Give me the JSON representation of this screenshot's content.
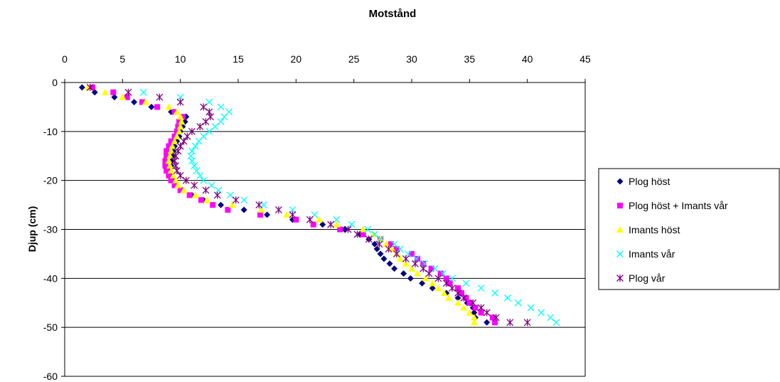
{
  "chart_data": {
    "type": "scatter",
    "title": "Motstånd",
    "xlabel": "",
    "ylabel": "Djup (cm)",
    "xlim": [
      0,
      45
    ],
    "ylim": [
      -60,
      0
    ],
    "xticks": [
      0,
      5,
      10,
      15,
      20,
      25,
      30,
      35,
      40,
      45
    ],
    "yticks": [
      0,
      -10,
      -20,
      -30,
      -40,
      -50,
      -60
    ],
    "x_axis_position": "top",
    "grid": "horizontal",
    "legend_position": "right",
    "series": [
      {
        "name": "Plog höst",
        "marker": "diamond",
        "color": "#000080",
        "points": [
          [
            1.5,
            -1
          ],
          [
            2.6,
            -2
          ],
          [
            4.3,
            -3
          ],
          [
            6.0,
            -4
          ],
          [
            7.5,
            -5
          ],
          [
            9.2,
            -6
          ],
          [
            10.5,
            -7
          ],
          [
            10.4,
            -8
          ],
          [
            10.2,
            -9
          ],
          [
            10.0,
            -10
          ],
          [
            9.9,
            -11
          ],
          [
            9.7,
            -12
          ],
          [
            9.5,
            -13
          ],
          [
            9.4,
            -14
          ],
          [
            9.3,
            -15
          ],
          [
            9.2,
            -16
          ],
          [
            9.2,
            -17
          ],
          [
            9.1,
            -18
          ],
          [
            9.2,
            -19
          ],
          [
            9.4,
            -20
          ],
          [
            9.6,
            -21
          ],
          [
            10.2,
            -22
          ],
          [
            11.0,
            -23
          ],
          [
            12.0,
            -24
          ],
          [
            13.5,
            -25
          ],
          [
            15.5,
            -26
          ],
          [
            17.5,
            -27
          ],
          [
            19.7,
            -28
          ],
          [
            22.3,
            -29
          ],
          [
            24.2,
            -30
          ],
          [
            25.5,
            -31
          ],
          [
            26.3,
            -32
          ],
          [
            26.8,
            -33
          ],
          [
            27.0,
            -34
          ],
          [
            27.3,
            -35
          ],
          [
            27.6,
            -36
          ],
          [
            28.1,
            -37
          ],
          [
            28.5,
            -38
          ],
          [
            29.3,
            -39
          ],
          [
            29.9,
            -40
          ],
          [
            30.9,
            -41
          ],
          [
            31.8,
            -42
          ],
          [
            33.0,
            -43
          ],
          [
            34.0,
            -44
          ],
          [
            34.8,
            -45
          ],
          [
            35.3,
            -46
          ],
          [
            35.4,
            -47
          ],
          [
            35.5,
            -48
          ],
          [
            36.5,
            -49
          ]
        ]
      },
      {
        "name": "Plog höst + Imants vår",
        "marker": "square",
        "color": "#ff00ff",
        "points": [
          [
            2.4,
            -1
          ],
          [
            4.2,
            -2
          ],
          [
            5.4,
            -3
          ],
          [
            6.7,
            -4
          ],
          [
            8.0,
            -5
          ],
          [
            9.5,
            -6
          ],
          [
            10.2,
            -7
          ],
          [
            9.9,
            -8
          ],
          [
            9.8,
            -9
          ],
          [
            9.7,
            -10
          ],
          [
            9.5,
            -11
          ],
          [
            9.2,
            -12
          ],
          [
            9.0,
            -13
          ],
          [
            8.8,
            -14
          ],
          [
            8.8,
            -15
          ],
          [
            8.7,
            -16
          ],
          [
            8.7,
            -17
          ],
          [
            8.8,
            -18
          ],
          [
            9.0,
            -19
          ],
          [
            9.2,
            -20
          ],
          [
            9.5,
            -21
          ],
          [
            10.0,
            -22
          ],
          [
            10.8,
            -23
          ],
          [
            11.8,
            -24
          ],
          [
            12.8,
            -25
          ],
          [
            14.1,
            -26
          ],
          [
            16.9,
            -27
          ],
          [
            20.0,
            -28
          ],
          [
            21.5,
            -29
          ],
          [
            23.8,
            -30
          ],
          [
            25.8,
            -31
          ],
          [
            27.3,
            -32
          ],
          [
            28.2,
            -33
          ],
          [
            28.7,
            -34
          ],
          [
            30.0,
            -35
          ],
          [
            30.5,
            -36
          ],
          [
            31.0,
            -37
          ],
          [
            31.7,
            -38
          ],
          [
            32.5,
            -39
          ],
          [
            33.0,
            -40
          ],
          [
            33.3,
            -41
          ],
          [
            34.0,
            -42
          ],
          [
            34.3,
            -43
          ],
          [
            34.7,
            -44
          ],
          [
            35.0,
            -45
          ],
          [
            35.5,
            -46
          ],
          [
            36.0,
            -47
          ],
          [
            37.0,
            -48
          ],
          [
            37.2,
            -49
          ]
        ]
      },
      {
        "name": "Imants höst",
        "marker": "triangle",
        "color": "#ffff00",
        "points": [
          [
            2.0,
            -1
          ],
          [
            3.5,
            -2
          ],
          [
            5.0,
            -3
          ],
          [
            7.0,
            -4
          ],
          [
            9.0,
            -5
          ],
          [
            9.7,
            -6
          ],
          [
            10.0,
            -7
          ],
          [
            10.1,
            -8
          ],
          [
            10.0,
            -9
          ],
          [
            9.9,
            -10
          ],
          [
            9.7,
            -11
          ],
          [
            9.5,
            -12
          ],
          [
            9.3,
            -13
          ],
          [
            9.2,
            -14
          ],
          [
            9.1,
            -15
          ],
          [
            9.0,
            -16
          ],
          [
            9.1,
            -17
          ],
          [
            9.2,
            -18
          ],
          [
            9.4,
            -19
          ],
          [
            9.6,
            -20
          ],
          [
            9.8,
            -21
          ],
          [
            10.3,
            -22
          ],
          [
            11.3,
            -23
          ],
          [
            12.3,
            -24
          ],
          [
            14.5,
            -25
          ],
          [
            17.0,
            -26
          ],
          [
            19.2,
            -27
          ],
          [
            22.0,
            -28
          ],
          [
            23.5,
            -29
          ],
          [
            25.8,
            -30
          ],
          [
            26.7,
            -31
          ],
          [
            27.3,
            -32
          ],
          [
            27.8,
            -33
          ],
          [
            28.3,
            -34
          ],
          [
            28.7,
            -35
          ],
          [
            29.0,
            -36
          ],
          [
            29.5,
            -37
          ],
          [
            30.0,
            -38
          ],
          [
            30.5,
            -39
          ],
          [
            31.2,
            -40
          ],
          [
            31.8,
            -41
          ],
          [
            32.3,
            -42
          ],
          [
            32.8,
            -43
          ],
          [
            33.2,
            -44
          ],
          [
            34.0,
            -45
          ],
          [
            34.5,
            -46
          ],
          [
            35.0,
            -47
          ],
          [
            35.4,
            -48
          ],
          [
            35.4,
            -49
          ]
        ]
      },
      {
        "name": "Imants vår",
        "marker": "x",
        "color": "#00ffff",
        "points": [
          [
            6.8,
            -2
          ],
          [
            10.0,
            -3
          ],
          [
            12.5,
            -4
          ],
          [
            13.5,
            -5
          ],
          [
            14.2,
            -6
          ],
          [
            13.8,
            -7
          ],
          [
            13.5,
            -8
          ],
          [
            13.0,
            -9
          ],
          [
            12.5,
            -10
          ],
          [
            12.0,
            -11
          ],
          [
            11.6,
            -12
          ],
          [
            11.3,
            -13
          ],
          [
            11.0,
            -14
          ],
          [
            10.9,
            -15
          ],
          [
            11.0,
            -16
          ],
          [
            11.2,
            -17
          ],
          [
            11.4,
            -18
          ],
          [
            11.7,
            -19
          ],
          [
            12.0,
            -20
          ],
          [
            12.7,
            -21
          ],
          [
            13.3,
            -22
          ],
          [
            14.3,
            -23
          ],
          [
            15.5,
            -24
          ],
          [
            17.2,
            -25
          ],
          [
            19.7,
            -26
          ],
          [
            21.6,
            -27
          ],
          [
            23.5,
            -28
          ],
          [
            24.8,
            -29
          ],
          [
            26.2,
            -30
          ],
          [
            26.8,
            -31
          ],
          [
            27.3,
            -32
          ],
          [
            28.5,
            -33
          ],
          [
            29.0,
            -34
          ],
          [
            29.7,
            -35
          ],
          [
            30.4,
            -36
          ],
          [
            31.1,
            -37
          ],
          [
            32.0,
            -38
          ],
          [
            32.7,
            -39
          ],
          [
            33.5,
            -40
          ],
          [
            34.7,
            -41
          ],
          [
            36.0,
            -42
          ],
          [
            37.2,
            -43
          ],
          [
            38.3,
            -44
          ],
          [
            39.2,
            -45
          ],
          [
            40.3,
            -46
          ],
          [
            41.2,
            -47
          ],
          [
            42.0,
            -48
          ],
          [
            42.5,
            -49
          ]
        ]
      },
      {
        "name": "Plog vår",
        "marker": "star",
        "color": "#800080",
        "points": [
          [
            2.2,
            -1
          ],
          [
            5.5,
            -2
          ],
          [
            8.2,
            -3
          ],
          [
            10.0,
            -4
          ],
          [
            12.0,
            -5
          ],
          [
            12.5,
            -6
          ],
          [
            12.6,
            -7
          ],
          [
            12.2,
            -8
          ],
          [
            11.7,
            -9
          ],
          [
            11.0,
            -10
          ],
          [
            10.6,
            -11
          ],
          [
            10.3,
            -12
          ],
          [
            10.0,
            -13
          ],
          [
            9.8,
            -14
          ],
          [
            9.6,
            -15
          ],
          [
            9.5,
            -16
          ],
          [
            9.6,
            -17
          ],
          [
            9.7,
            -18
          ],
          [
            10.0,
            -19
          ],
          [
            10.5,
            -20
          ],
          [
            11.2,
            -21
          ],
          [
            12.2,
            -22
          ],
          [
            13.2,
            -23
          ],
          [
            14.8,
            -24
          ],
          [
            16.8,
            -25
          ],
          [
            18.5,
            -26
          ],
          [
            19.7,
            -27
          ],
          [
            21.2,
            -28
          ],
          [
            23.0,
            -29
          ],
          [
            24.5,
            -30
          ],
          [
            25.3,
            -31
          ],
          [
            26.3,
            -32
          ],
          [
            27.2,
            -33
          ],
          [
            28.0,
            -34
          ],
          [
            28.7,
            -35
          ],
          [
            29.5,
            -36
          ],
          [
            30.3,
            -37
          ],
          [
            31.0,
            -38
          ],
          [
            31.5,
            -39
          ],
          [
            32.3,
            -40
          ],
          [
            33.0,
            -41
          ],
          [
            33.5,
            -42
          ],
          [
            34.0,
            -43
          ],
          [
            34.5,
            -44
          ],
          [
            35.3,
            -45
          ],
          [
            36.0,
            -46
          ],
          [
            36.5,
            -47
          ],
          [
            37.3,
            -48
          ],
          [
            38.5,
            -49
          ],
          [
            40.0,
            -49
          ]
        ]
      }
    ]
  }
}
